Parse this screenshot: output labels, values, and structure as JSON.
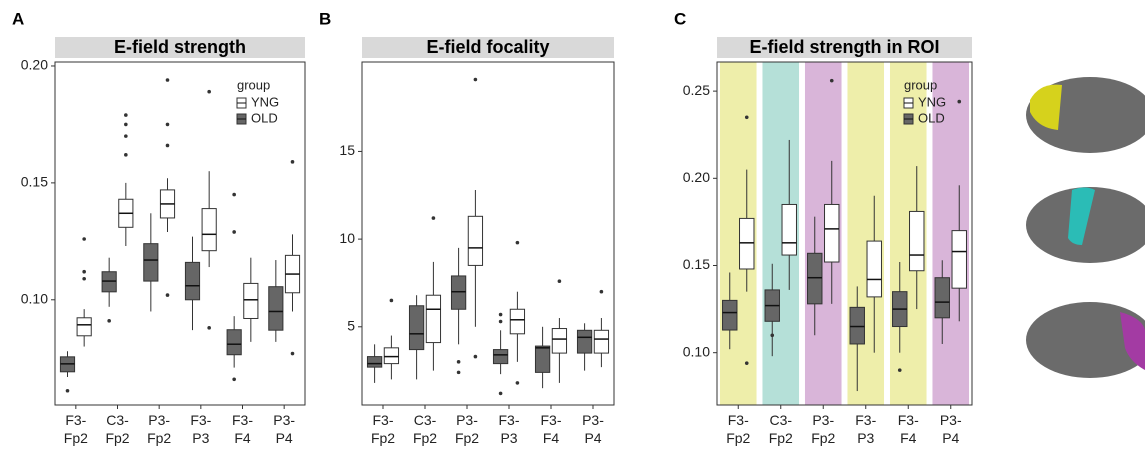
{
  "chart_data": [
    {
      "type": "box",
      "panel": "A",
      "title": "E-field strength",
      "categories": [
        "F3-Fp2",
        "C3-Fp2",
        "P3-Fp2",
        "F3-P3",
        "F3-F4",
        "P3-P4"
      ],
      "ylim": [
        0.055,
        0.2017
      ],
      "yticks": [
        {
          "value": 0.1,
          "label": "0.10"
        },
        {
          "value": 0.15,
          "label": "0.15"
        },
        {
          "value": 0.2,
          "label": "0.20"
        }
      ],
      "legend": {
        "title": "group",
        "position": "top-right"
      },
      "series": [
        {
          "name": "YNG",
          "color": "#ffffff",
          "whisker_low": [
            0.08,
            0.123,
            0.129,
            0.114,
            0.082,
            0.095
          ],
          "q1": [
            0.0846,
            0.131,
            0.135,
            0.121,
            0.092,
            0.103
          ],
          "median": [
            0.0893,
            0.137,
            0.141,
            0.128,
            0.1,
            0.111
          ],
          "q3": [
            0.0923,
            0.143,
            0.147,
            0.139,
            0.107,
            0.119
          ],
          "whisker_high": [
            0.096,
            0.15,
            0.152,
            0.155,
            0.118,
            0.128
          ],
          "outliers": [
            [
              0.126,
              0.112,
              0.109
            ],
            [
              0.179,
              0.175,
              0.17,
              0.162
            ],
            [
              0.194,
              0.175,
              0.166,
              0.102
            ],
            [
              0.189,
              0.088
            ],
            [],
            [
              0.159,
              0.077
            ]
          ]
        },
        {
          "name": "OLD",
          "color": "#666666",
          "whisker_low": [
            0.067,
            0.097,
            0.095,
            0.087,
            0.071,
            0.082
          ],
          "q1": [
            0.0692,
            0.1034,
            0.108,
            0.1,
            0.0765,
            0.087
          ],
          "median": [
            0.0726,
            0.108,
            0.117,
            0.106,
            0.081,
            0.095
          ],
          "q3": [
            0.0756,
            0.112,
            0.124,
            0.116,
            0.0872,
            0.1056
          ],
          "whisker_high": [
            0.078,
            0.118,
            0.137,
            0.127,
            0.093,
            0.117
          ],
          "outliers": [
            [
              0.0611
            ],
            [
              0.091
            ],
            [],
            [],
            [
              0.145,
              0.129,
              0.066
            ],
            []
          ]
        }
      ]
    },
    {
      "type": "box",
      "panel": "B",
      "title": "E-field focality",
      "categories": [
        "F3-Fp2",
        "C3-Fp2",
        "P3-Fp2",
        "F3-P3",
        "F3-F4",
        "P3-P4"
      ],
      "ylim": [
        0.54,
        20.1
      ],
      "yticks": [
        5,
        10,
        15
      ],
      "series": [
        {
          "name": "YNG",
          "color": "#ffffff",
          "whisker_low": [
            2.0,
            2.5,
            5.0,
            3.0,
            1.8,
            2.7
          ],
          "q1": [
            2.9,
            4.1,
            8.5,
            4.6,
            3.5,
            3.5
          ],
          "median": [
            3.3,
            6.0,
            9.5,
            5.4,
            4.3,
            4.3
          ],
          "q3": [
            3.8,
            6.8,
            11.3,
            6.0,
            4.9,
            4.8
          ],
          "whisker_high": [
            4.5,
            8.7,
            12.8,
            7.0,
            5.5,
            5.5
          ],
          "outliers": [
            [
              6.5
            ],
            [
              11.2
            ],
            [
              19.1,
              3.3
            ],
            [
              9.8,
              1.8
            ],
            [
              7.6
            ],
            [
              7.0
            ]
          ]
        },
        {
          "name": "OLD",
          "color": "#666666",
          "whisker_low": [
            1.8,
            2.0,
            4.0,
            2.3,
            1.5,
            2.5
          ],
          "q1": [
            2.7,
            3.7,
            6.0,
            2.9,
            2.4,
            3.5
          ],
          "median": [
            2.9,
            4.6,
            7.0,
            3.4,
            3.8,
            4.4
          ],
          "q3": [
            3.3,
            6.2,
            7.9,
            3.7,
            3.9,
            4.8
          ],
          "whisker_high": [
            4.0,
            6.8,
            9.5,
            4.8,
            5.0,
            5.2
          ],
          "outliers": [
            [],
            [],
            [
              3.0,
              2.4
            ],
            [
              5.7,
              5.3,
              1.2
            ],
            [],
            []
          ]
        }
      ]
    },
    {
      "type": "box",
      "panel": "C",
      "title": "E-field strength in ROI",
      "categories": [
        "F3-Fp2",
        "C3-Fp2",
        "P3-Fp2",
        "F3-P3",
        "F3-F4",
        "P3-P4"
      ],
      "band_colors": [
        "#eeeeaa",
        "#b5e0d8",
        "#d9b5d9",
        "#eeeeaa",
        "#eeeeaa",
        "#d9b5d9"
      ],
      "ylim": [
        0.07,
        0.2667
      ],
      "yticks": [
        {
          "value": 0.1,
          "label": "0.10"
        },
        {
          "value": 0.15,
          "label": "0.15"
        },
        {
          "value": 0.2,
          "label": "0.20"
        },
        {
          "value": 0.25,
          "label": "0.25"
        }
      ],
      "legend": {
        "title": "group",
        "position": "top-right"
      },
      "series": [
        {
          "name": "YNG",
          "color": "#ffffff",
          "whisker_low": [
            0.135,
            0.136,
            0.128,
            0.1,
            0.125,
            0.118
          ],
          "q1": [
            0.148,
            0.156,
            0.152,
            0.132,
            0.147,
            0.137
          ],
          "median": [
            0.163,
            0.163,
            0.171,
            0.142,
            0.156,
            0.158
          ],
          "q3": [
            0.177,
            0.185,
            0.185,
            0.164,
            0.181,
            0.17
          ],
          "whisker_high": [
            0.205,
            0.222,
            0.21,
            0.19,
            0.207,
            0.196
          ],
          "outliers": [
            [
              0.235,
              0.094
            ],
            [],
            [
              0.256
            ],
            [],
            [],
            [
              0.244
            ]
          ]
        },
        {
          "name": "OLD",
          "color": "#666666",
          "whisker_low": [
            0.102,
            0.098,
            0.11,
            0.078,
            0.1,
            0.105
          ],
          "q1": [
            0.113,
            0.118,
            0.128,
            0.105,
            0.115,
            0.12
          ],
          "median": [
            0.123,
            0.127,
            0.143,
            0.115,
            0.125,
            0.129
          ],
          "q3": [
            0.13,
            0.136,
            0.157,
            0.126,
            0.135,
            0.143
          ],
          "whisker_high": [
            0.146,
            0.151,
            0.178,
            0.138,
            0.152,
            0.153
          ],
          "outliers": [
            [],
            [
              0.11
            ],
            [],
            [],
            [
              0.09
            ],
            []
          ]
        }
      ]
    }
  ]
}
